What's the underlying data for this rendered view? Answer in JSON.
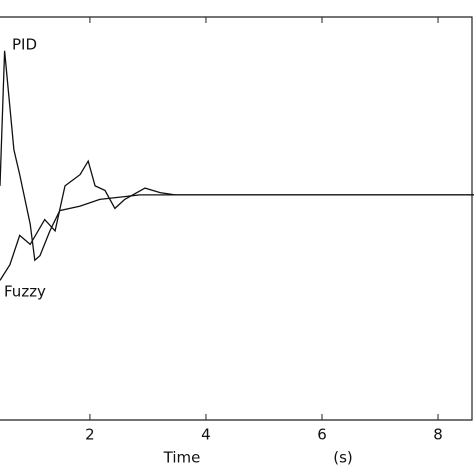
{
  "chart_data": {
    "type": "line",
    "x_label": "Time",
    "x_unit": "(s)",
    "xlim": [
      0.45,
      8.62
    ],
    "xticks": [
      2,
      4,
      6,
      8
    ],
    "ylim": [
      0,
      1.79
    ],
    "series": [
      {
        "name": "PID",
        "color": "#111111",
        "x": [
          0.45,
          0.53,
          0.69,
          0.79,
          0.97,
          1.05,
          1.14,
          1.31,
          1.48,
          1.83,
          2.17,
          2.86,
          8.62
        ],
        "values": [
          1.04,
          1.64,
          1.2,
          1.09,
          0.87,
          0.71,
          0.73,
          0.84,
          0.93,
          0.95,
          0.98,
          1.0,
          1.0
        ]
      },
      {
        "name": "Fuzzy",
        "color": "#111111",
        "x": [
          0.45,
          0.62,
          0.79,
          0.97,
          1.22,
          1.4,
          1.57,
          1.83,
          1.97,
          2.09,
          2.26,
          2.43,
          2.6,
          2.95,
          3.21,
          3.47,
          8.62
        ],
        "values": [
          0.62,
          0.69,
          0.82,
          0.78,
          0.89,
          0.84,
          1.04,
          1.09,
          1.15,
          1.04,
          1.02,
          0.94,
          0.98,
          1.03,
          1.01,
          1.0,
          1.0
        ]
      }
    ]
  }
}
